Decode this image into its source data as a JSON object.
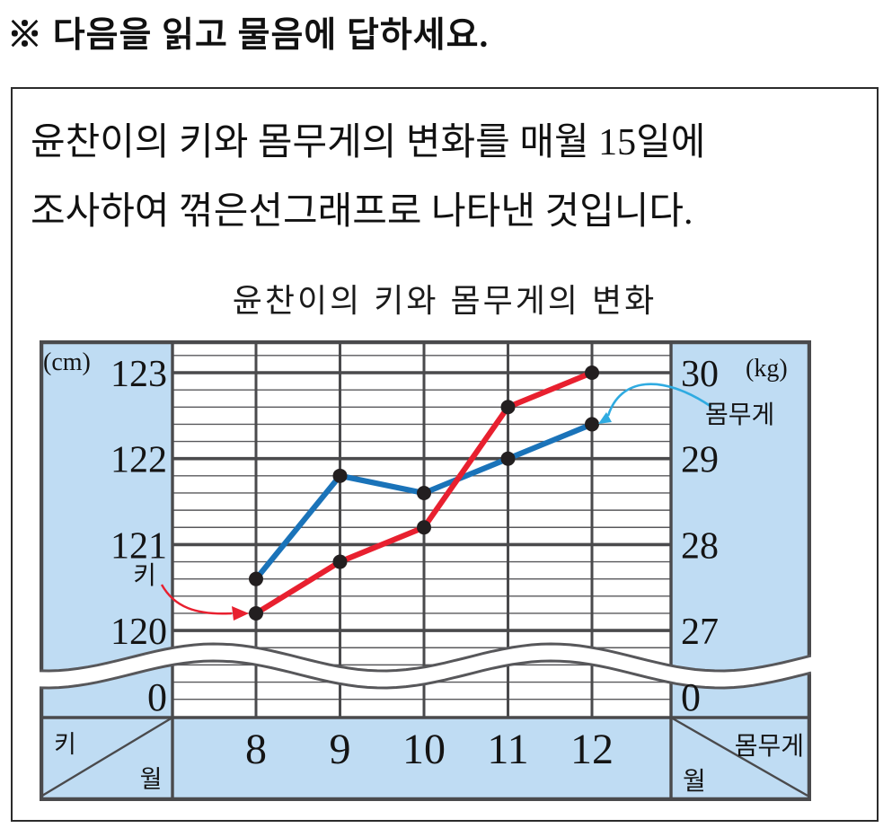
{
  "page": {
    "instruction": "※ 다음을 읽고 물음에 답하세요."
  },
  "problem": {
    "line1": "윤찬이의 키와 몸무게의 변화를 매월 15일에",
    "line2": "조사하여 꺾은선그래프로 나타낸 것입니다."
  },
  "chart": {
    "title": "윤찬이의 키와 몸무게의 변화",
    "left_axis": {
      "unit": "(cm)",
      "ticks": [
        123,
        122,
        121,
        120
      ],
      "zero": "0",
      "series_label": "키"
    },
    "right_axis": {
      "unit": "(kg)",
      "ticks": [
        30,
        29,
        28,
        27
      ],
      "zero": "0",
      "series_label": "몸무게"
    },
    "x_axis": {
      "unit_label": "월",
      "months": [
        8,
        9,
        10,
        11,
        12
      ]
    },
    "corner_left": {
      "top": "키",
      "bottom": "월"
    },
    "corner_right": {
      "top": "몸무게",
      "bottom": "월"
    }
  },
  "chart_data": {
    "type": "line",
    "title": "윤찬이의 키와 몸무게의 변화",
    "x": [
      8,
      9,
      10,
      11,
      12
    ],
    "xlabel": "월",
    "series": [
      {
        "name": "키",
        "unit": "cm",
        "axis": "left",
        "color": "#e8202f",
        "values": [
          120.2,
          120.8,
          121.2,
          122.6,
          123.0
        ]
      },
      {
        "name": "몸무게",
        "unit": "kg",
        "axis": "right",
        "color": "#1a73b9",
        "values": [
          27.6,
          28.8,
          28.6,
          29.0,
          29.4
        ]
      }
    ],
    "left_ylim": [
      120,
      123.4
    ],
    "right_ylim": [
      27,
      30.4
    ],
    "minor_step": 0.2,
    "axis_break": true,
    "grid": true,
    "legend_position": "arrows-inside-plot"
  },
  "colors": {
    "band_blue": "#bfdcf3",
    "series_red": "#e8202f",
    "series_blue": "#1a73b9",
    "arrow_cyan": "#2fabe1",
    "grid_dark": "#4a4a4c",
    "grid_thin": "#58585b",
    "point_black": "#231f20",
    "wave_stroke": "#57575a"
  }
}
